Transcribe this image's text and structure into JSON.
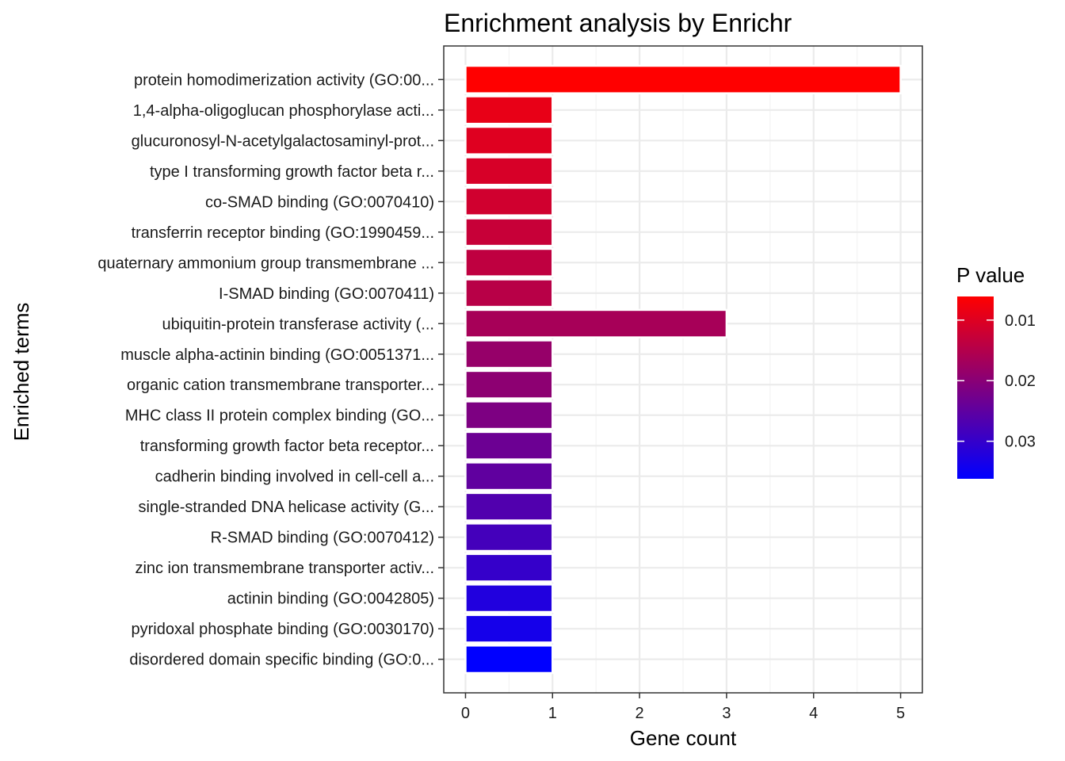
{
  "chart_data": {
    "type": "bar",
    "orientation": "horizontal",
    "title": "Enrichment analysis by Enrichr",
    "xlabel": "Gene count",
    "ylabel": "Enriched terms",
    "xlim": [
      0,
      5
    ],
    "x_ticks": [
      0,
      1,
      2,
      3,
      4,
      5
    ],
    "grid": true,
    "categories": [
      "protein homodimerization activity (GO:00...",
      "1,4-alpha-oligoglucan phosphorylase acti...",
      "glucuronosyl-N-acetylgalactosaminyl-prot...",
      "type I transforming growth factor beta r...",
      "co-SMAD binding (GO:0070410)",
      "transferrin receptor binding (GO:1990459...",
      "quaternary ammonium group transmembrane ...",
      "I-SMAD binding (GO:0070411)",
      "ubiquitin-protein transferase activity (...",
      "muscle alpha-actinin binding (GO:0051371...",
      "organic cation transmembrane transporter...",
      "MHC class II protein complex binding (GO...",
      "transforming growth factor beta receptor...",
      "cadherin binding involved in cell-cell a...",
      "single-stranded DNA helicase activity (G...",
      "R-SMAD binding (GO:0070412)",
      "zinc ion transmembrane transporter activ...",
      "actinin binding (GO:0042805)",
      "pyridoxal phosphate binding (GO:0030170)",
      "disordered domain specific binding (GO:0..."
    ],
    "values": [
      5,
      1,
      1,
      1,
      1,
      1,
      1,
      1,
      3,
      1,
      1,
      1,
      1,
      1,
      1,
      1,
      1,
      1,
      1,
      1
    ],
    "p_values": [
      0.0061,
      0.0088,
      0.0099,
      0.0108,
      0.0117,
      0.0127,
      0.0136,
      0.0145,
      0.0165,
      0.0185,
      0.0196,
      0.0214,
      0.0235,
      0.0249,
      0.0266,
      0.0282,
      0.03,
      0.0323,
      0.0337,
      0.0362
    ],
    "legend": {
      "title": "P value",
      "placement": "right",
      "range": [
        0.0061,
        0.0362
      ],
      "ticks": [
        0.01,
        0.02,
        0.03
      ],
      "tick_labels": [
        "0.01",
        "0.02",
        "0.03"
      ],
      "low_color": "#ff0000",
      "high_color": "#0000ff"
    },
    "colors": {
      "panel_border": "#333333",
      "grid_major": "#ebebeb",
      "grid_minor": "#f4f4f4",
      "bar_outline": "#ffffff"
    }
  }
}
